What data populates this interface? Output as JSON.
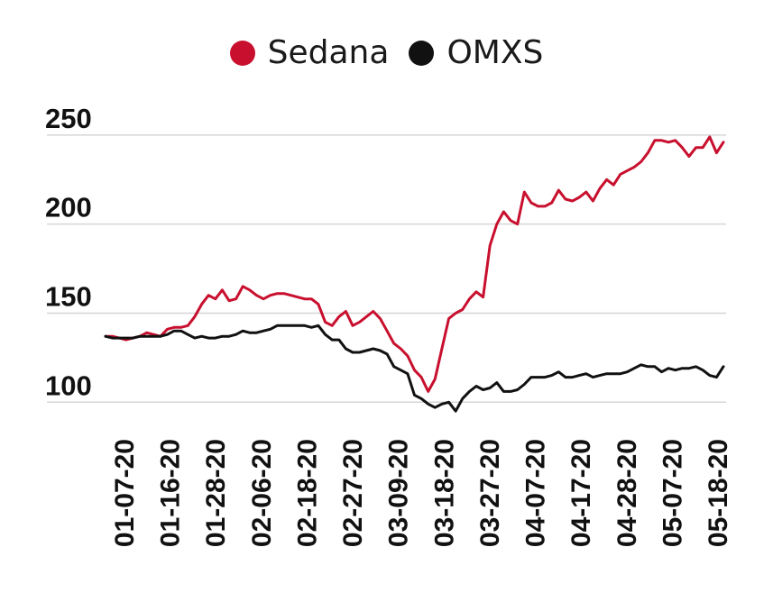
{
  "legend": {
    "items": [
      {
        "label": "Sedana",
        "color": "#c8102e"
      },
      {
        "label": "OMXS",
        "color": "#111111"
      }
    ]
  },
  "chart_data": {
    "type": "line",
    "title": "",
    "xlabel": "",
    "ylabel": "",
    "ylim": [
      88,
      255
    ],
    "yticks": [
      100,
      150,
      200,
      250
    ],
    "grid": "horizontal",
    "legend_position": "top-center",
    "x_tick_labels": [
      "01-07-20",
      "01-16-20",
      "01-28-20",
      "02-06-20",
      "02-18-20",
      "02-27-20",
      "03-09-20",
      "03-18-20",
      "03-27-20",
      "04-07-20",
      "04-17-20",
      "04-28-20",
      "05-07-20",
      "05-18-20"
    ],
    "series": [
      {
        "name": "Sedana",
        "color": "#c8102e",
        "values": [
          137,
          137,
          136,
          135,
          136,
          137,
          139,
          138,
          137,
          141,
          142,
          142,
          143,
          148,
          155,
          160,
          158,
          163,
          157,
          158,
          165,
          163,
          160,
          158,
          160,
          161,
          161,
          160,
          159,
          158,
          158,
          155,
          145,
          143,
          148,
          151,
          143,
          145,
          148,
          151,
          147,
          140,
          133,
          130,
          126,
          118,
          114,
          106,
          113,
          130,
          147,
          150,
          152,
          158,
          162,
          159,
          188,
          200,
          207,
          202,
          200,
          218,
          212,
          210,
          210,
          212,
          219,
          214,
          213,
          215,
          218,
          213,
          220,
          225,
          222,
          228,
          230,
          232,
          235,
          240,
          247,
          247,
          246,
          247,
          243,
          238,
          243,
          243,
          249,
          240,
          246
        ]
      },
      {
        "name": "OMXS",
        "color": "#111111",
        "values": [
          137,
          136,
          136,
          136,
          136,
          137,
          137,
          137,
          137,
          138,
          140,
          140,
          138,
          136,
          137,
          136,
          136,
          137,
          137,
          138,
          140,
          139,
          139,
          140,
          141,
          143,
          143,
          143,
          143,
          143,
          142,
          143,
          138,
          135,
          135,
          130,
          128,
          128,
          129,
          130,
          129,
          127,
          120,
          118,
          116,
          104,
          102,
          99,
          97,
          99,
          100,
          95,
          102,
          106,
          109,
          107,
          108,
          111,
          106,
          106,
          107,
          110,
          114,
          114,
          114,
          115,
          117,
          114,
          114,
          115,
          116,
          114,
          115,
          116,
          116,
          116,
          117,
          119,
          121,
          120,
          120,
          117,
          119,
          118,
          119,
          119,
          120,
          118,
          115,
          114,
          120
        ]
      }
    ]
  }
}
